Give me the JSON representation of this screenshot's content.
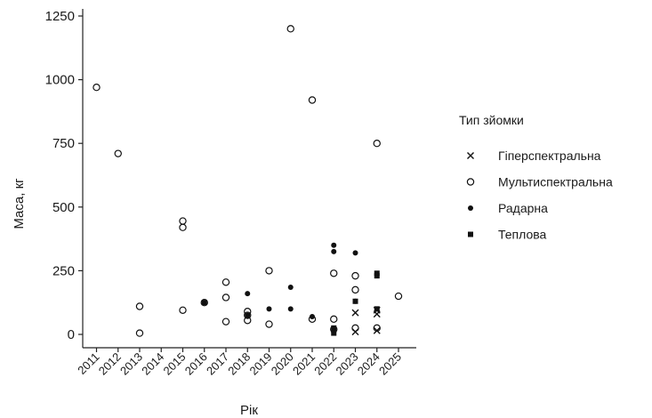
{
  "chart_data": {
    "type": "scatter",
    "xlabel": "Рік",
    "ylabel": "Маса, кг",
    "categories": [
      "2011",
      "2012",
      "2013",
      "2014",
      "2015",
      "2016",
      "2017",
      "2018",
      "2019",
      "2020",
      "2021",
      "2022",
      "2023",
      "2024",
      "2025"
    ],
    "yticks": [
      0,
      250,
      500,
      750,
      1000,
      1250
    ],
    "ylim": [
      -30,
      1290
    ],
    "grid": false,
    "legend": {
      "title": "Тип зйомки",
      "placement": "right"
    },
    "series": [
      {
        "name": "Гіперспектральна",
        "marker": "x",
        "points": [
          {
            "x": "2023",
            "y": 85
          },
          {
            "x": "2023",
            "y": 10
          },
          {
            "x": "2024",
            "y": 95
          },
          {
            "x": "2024",
            "y": 80
          },
          {
            "x": "2024",
            "y": 15
          }
        ]
      },
      {
        "name": "Мультиспектральна",
        "marker": "circle-open",
        "points": [
          {
            "x": "2011",
            "y": 970
          },
          {
            "x": "2012",
            "y": 710
          },
          {
            "x": "2013",
            "y": 110
          },
          {
            "x": "2013",
            "y": 5
          },
          {
            "x": "2015",
            "y": 445
          },
          {
            "x": "2015",
            "y": 420
          },
          {
            "x": "2015",
            "y": 95
          },
          {
            "x": "2016",
            "y": 125
          },
          {
            "x": "2017",
            "y": 205
          },
          {
            "x": "2017",
            "y": 145
          },
          {
            "x": "2017",
            "y": 50
          },
          {
            "x": "2018",
            "y": 90
          },
          {
            "x": "2018",
            "y": 75
          },
          {
            "x": "2018",
            "y": 55
          },
          {
            "x": "2019",
            "y": 250
          },
          {
            "x": "2019",
            "y": 40
          },
          {
            "x": "2020",
            "y": 1200
          },
          {
            "x": "2021",
            "y": 920
          },
          {
            "x": "2021",
            "y": 60
          },
          {
            "x": "2022",
            "y": 240
          },
          {
            "x": "2022",
            "y": 60
          },
          {
            "x": "2022",
            "y": 20
          },
          {
            "x": "2023",
            "y": 230
          },
          {
            "x": "2023",
            "y": 175
          },
          {
            "x": "2023",
            "y": 25
          },
          {
            "x": "2024",
            "y": 750
          },
          {
            "x": "2024",
            "y": 25
          },
          {
            "x": "2025",
            "y": 150
          }
        ]
      },
      {
        "name": "Радарна",
        "marker": "circle-filled",
        "points": [
          {
            "x": "2018",
            "y": 160
          },
          {
            "x": "2018",
            "y": 75
          },
          {
            "x": "2019",
            "y": 100
          },
          {
            "x": "2020",
            "y": 185
          },
          {
            "x": "2020",
            "y": 100
          },
          {
            "x": "2021",
            "y": 70
          },
          {
            "x": "2022",
            "y": 350
          },
          {
            "x": "2022",
            "y": 325
          },
          {
            "x": "2022",
            "y": 10
          },
          {
            "x": "2023",
            "y": 320
          },
          {
            "x": "2023",
            "y": 130
          }
        ]
      },
      {
        "name": "Теплова",
        "marker": "square-filled",
        "points": [
          {
            "x": "2016",
            "y": 125
          },
          {
            "x": "2022",
            "y": 25
          },
          {
            "x": "2022",
            "y": 5
          },
          {
            "x": "2023",
            "y": 130
          },
          {
            "x": "2024",
            "y": 240
          },
          {
            "x": "2024",
            "y": 230
          },
          {
            "x": "2024",
            "y": 100
          }
        ]
      }
    ]
  }
}
